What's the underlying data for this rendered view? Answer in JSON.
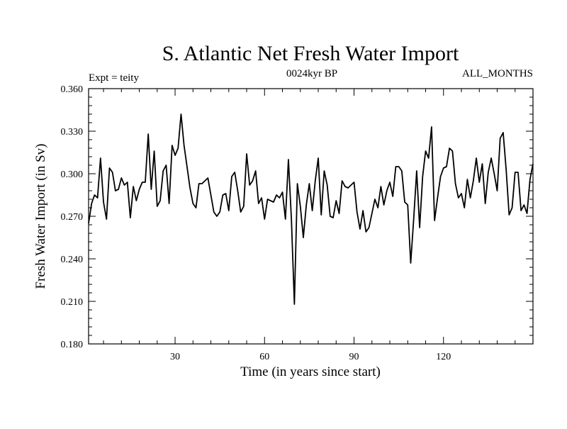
{
  "chart_data": {
    "type": "line",
    "title": "S. Atlantic Net Fresh Water Import",
    "subtitle_left": "Expt = teity",
    "subtitle_center": "0024kyr BP",
    "subtitle_right": "ALL_MONTHS",
    "xlabel": "Time (in years since start)",
    "ylabel": "Fresh Water Import (in Sv)",
    "xlim": [
      1,
      150
    ],
    "ylim": [
      0.18,
      0.36
    ],
    "x_ticks": [
      30,
      60,
      90,
      120
    ],
    "y_ticks": [
      0.18,
      0.21,
      0.24,
      0.27,
      0.3,
      0.33,
      0.36
    ],
    "x_tick_labels": [
      "30",
      "60",
      "90",
      "120"
    ],
    "y_tick_labels": [
      "0.180",
      "0.210",
      "0.240",
      "0.270",
      "0.300",
      "0.330",
      "0.360"
    ],
    "grid": false,
    "series": [
      {
        "name": "Fresh Water Import",
        "color": "#000000",
        "x": [
          1,
          2,
          3,
          4,
          5,
          6,
          7,
          8,
          9,
          10,
          11,
          12,
          13,
          14,
          15,
          16,
          17,
          18,
          19,
          20,
          21,
          22,
          23,
          24,
          25,
          26,
          27,
          28,
          29,
          30,
          31,
          32,
          33,
          34,
          35,
          36,
          37,
          38,
          39,
          40,
          41,
          42,
          43,
          44,
          45,
          46,
          47,
          48,
          49,
          50,
          51,
          52,
          53,
          54,
          55,
          56,
          57,
          58,
          59,
          60,
          61,
          62,
          63,
          64,
          65,
          66,
          67,
          68,
          69,
          70,
          71,
          72,
          73,
          74,
          75,
          76,
          77,
          78,
          79,
          80,
          81,
          82,
          83,
          84,
          85,
          86,
          87,
          88,
          89,
          90,
          91,
          92,
          93,
          94,
          95,
          96,
          97,
          98,
          99,
          100,
          101,
          102,
          103,
          104,
          105,
          106,
          107,
          108,
          109,
          110,
          111,
          112,
          113,
          114,
          115,
          116,
          117,
          118,
          119,
          120,
          121,
          122,
          123,
          124,
          125,
          126,
          127,
          128,
          129,
          130,
          131,
          132,
          133,
          134,
          135,
          136,
          137,
          138,
          139,
          140,
          141,
          142,
          143,
          144,
          145,
          146,
          147,
          148,
          149,
          150
        ],
        "values": [
          0.265,
          0.279,
          0.285,
          0.283,
          0.311,
          0.28,
          0.268,
          0.304,
          0.301,
          0.288,
          0.289,
          0.297,
          0.292,
          0.294,
          0.269,
          0.291,
          0.281,
          0.289,
          0.294,
          0.294,
          0.328,
          0.289,
          0.316,
          0.277,
          0.281,
          0.302,
          0.306,
          0.279,
          0.32,
          0.313,
          0.318,
          0.342,
          0.32,
          0.305,
          0.29,
          0.279,
          0.276,
          0.293,
          0.293,
          0.295,
          0.297,
          0.285,
          0.273,
          0.27,
          0.273,
          0.285,
          0.286,
          0.274,
          0.298,
          0.301,
          0.288,
          0.273,
          0.277,
          0.314,
          0.292,
          0.295,
          0.302,
          0.279,
          0.283,
          0.268,
          0.282,
          0.281,
          0.28,
          0.285,
          0.283,
          0.287,
          0.268,
          0.31,
          0.268,
          0.208,
          0.293,
          0.277,
          0.255,
          0.278,
          0.293,
          0.274,
          0.295,
          0.311,
          0.271,
          0.302,
          0.292,
          0.27,
          0.269,
          0.281,
          0.272,
          0.295,
          0.291,
          0.29,
          0.292,
          0.294,
          0.273,
          0.261,
          0.274,
          0.259,
          0.262,
          0.272,
          0.282,
          0.276,
          0.291,
          0.278,
          0.288,
          0.294,
          0.284,
          0.305,
          0.305,
          0.302,
          0.28,
          0.278,
          0.237,
          0.268,
          0.302,
          0.262,
          0.298,
          0.316,
          0.311,
          0.333,
          0.267,
          0.283,
          0.298,
          0.304,
          0.305,
          0.318,
          0.316,
          0.293,
          0.283,
          0.286,
          0.276,
          0.296,
          0.283,
          0.295,
          0.311,
          0.294,
          0.307,
          0.279,
          0.301,
          0.311,
          0.3,
          0.288,
          0.325,
          0.329,
          0.303,
          0.271,
          0.276,
          0.301,
          0.301,
          0.274,
          0.278,
          0.272,
          0.296,
          0.307
        ]
      }
    ]
  }
}
